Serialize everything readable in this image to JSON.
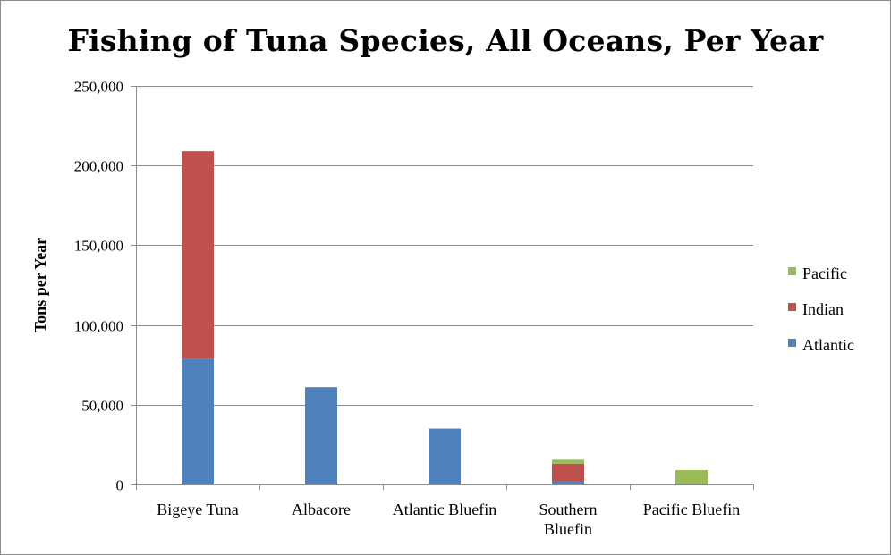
{
  "chart_data": {
    "type": "bar",
    "stacked": true,
    "title": "Fishing of Tuna Species, All Oceans, Per Year",
    "xlabel": "",
    "ylabel": "Tons per Year",
    "ylim": [
      0,
      250000
    ],
    "yticks": [
      0,
      50000,
      100000,
      150000,
      200000,
      250000
    ],
    "ytick_labels": [
      "0",
      "50,000",
      "100,000",
      "150,000",
      "200,000",
      "250,000"
    ],
    "grid": true,
    "legend_position": "right",
    "categories": [
      [
        "Bigeye Tuna"
      ],
      [
        "Albacore"
      ],
      [
        "Atlantic Bluefin"
      ],
      [
        "Southern",
        "Bluefin"
      ],
      [
        "Pacific Bluefin"
      ]
    ],
    "series": [
      {
        "name": "Atlantic",
        "color": "#4f81bd",
        "values": [
          79000,
          61000,
          35000,
          2000,
          0
        ]
      },
      {
        "name": "Indian",
        "color": "#c0504d",
        "values": [
          130000,
          0,
          0,
          11000,
          0
        ]
      },
      {
        "name": "Pacific",
        "color": "#9bbb59",
        "values": [
          0,
          0,
          0,
          2500,
          9000
        ]
      }
    ],
    "legend_order": [
      "Pacific",
      "Indian",
      "Atlantic"
    ]
  }
}
